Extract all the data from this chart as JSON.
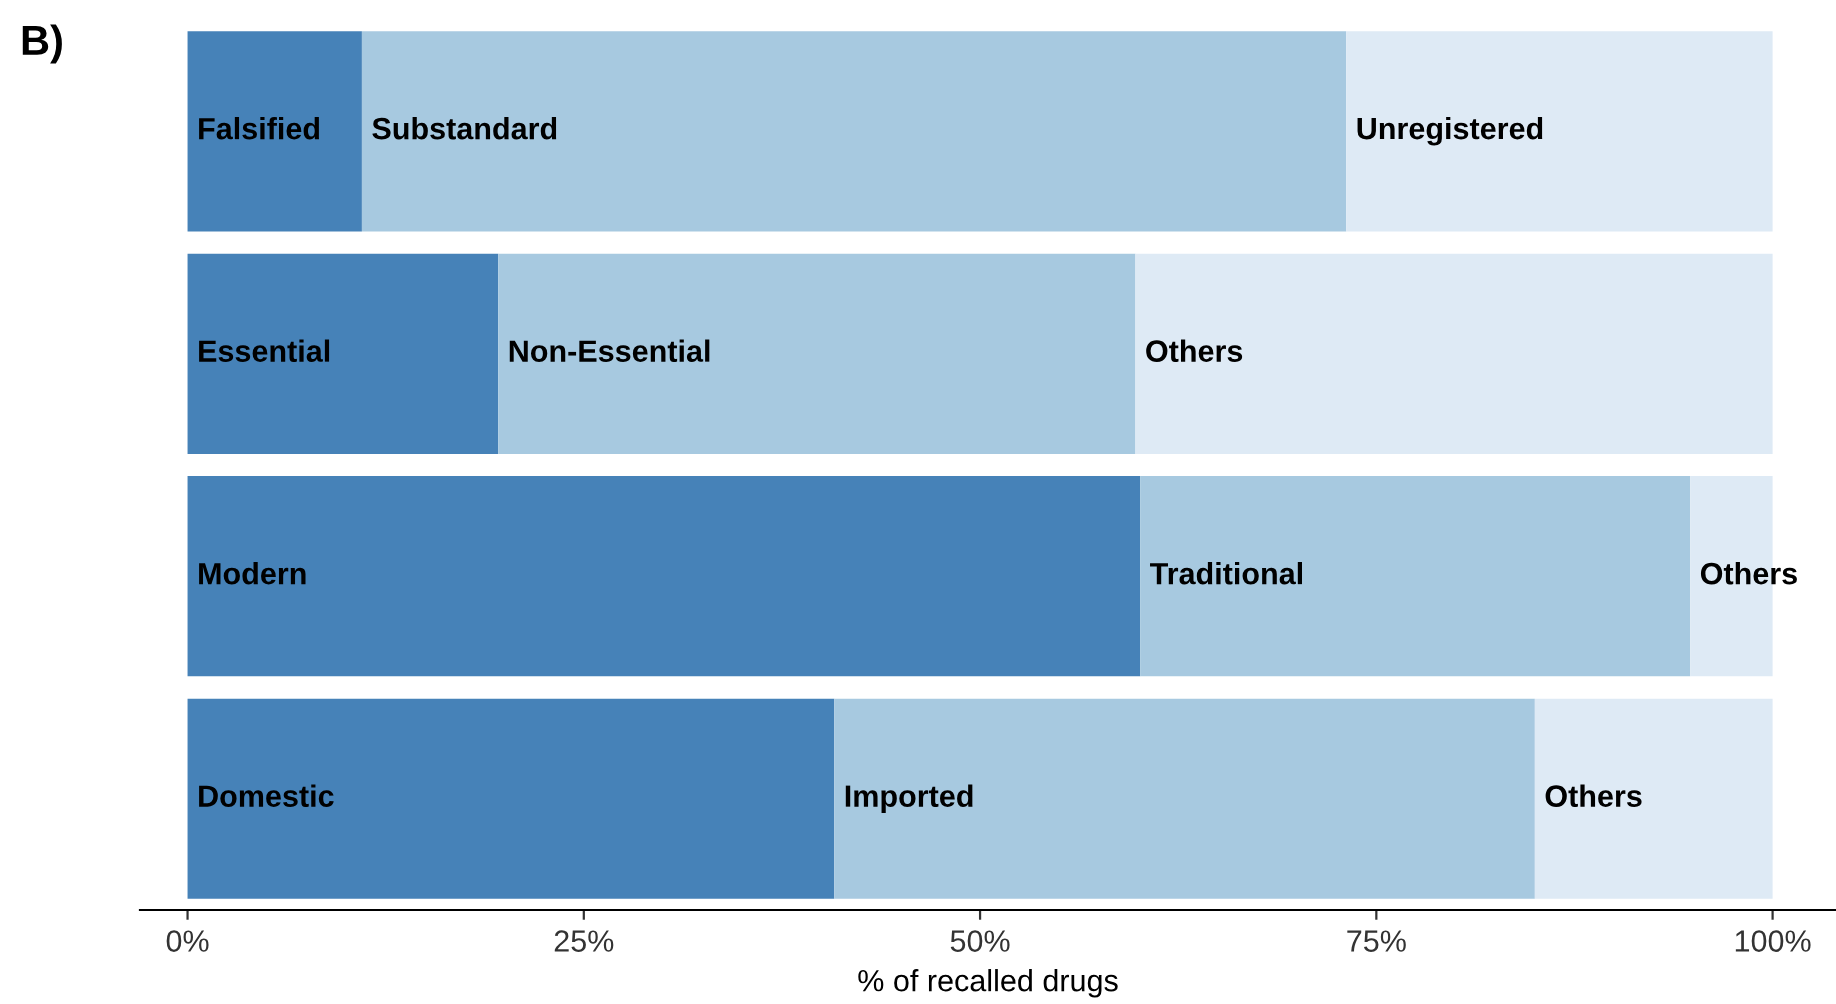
{
  "chart_data": {
    "type": "bar",
    "orientation": "horizontal",
    "stacked": true,
    "title": "B)",
    "xlabel": "% of recalled drugs",
    "categories": [
      null,
      null,
      null,
      null
    ],
    "series": [
      {
        "color": "#4682b8",
        "values": [
          11.0,
          19.6,
          60.1,
          40.8
        ],
        "value_labels": [
          "Falsified",
          "Essential",
          "Modern",
          "Domestic"
        ]
      },
      {
        "color": "#a7c9e0",
        "values": [
          62.1,
          40.2,
          34.7,
          44.2
        ],
        "value_labels": [
          "Substandard",
          "Non-Essential",
          "Traditional",
          "Imported"
        ]
      },
      {
        "color": "#deeaf5",
        "values": [
          26.9,
          40.2,
          5.2,
          15.0
        ],
        "value_labels": [
          "Unregistered",
          "Others",
          "Others",
          "Others"
        ]
      }
    ],
    "xlim": [
      -3,
      104
    ],
    "xticks": [
      {
        "value": 0,
        "label": "0%"
      },
      {
        "value": 25,
        "label": "25%"
      },
      {
        "value": 50,
        "label": "50%"
      },
      {
        "value": 75,
        "label": "75%"
      },
      {
        "value": 100,
        "label": "100%"
      }
    ],
    "tick_labels": "x",
    "grid": false,
    "legend": false
  }
}
